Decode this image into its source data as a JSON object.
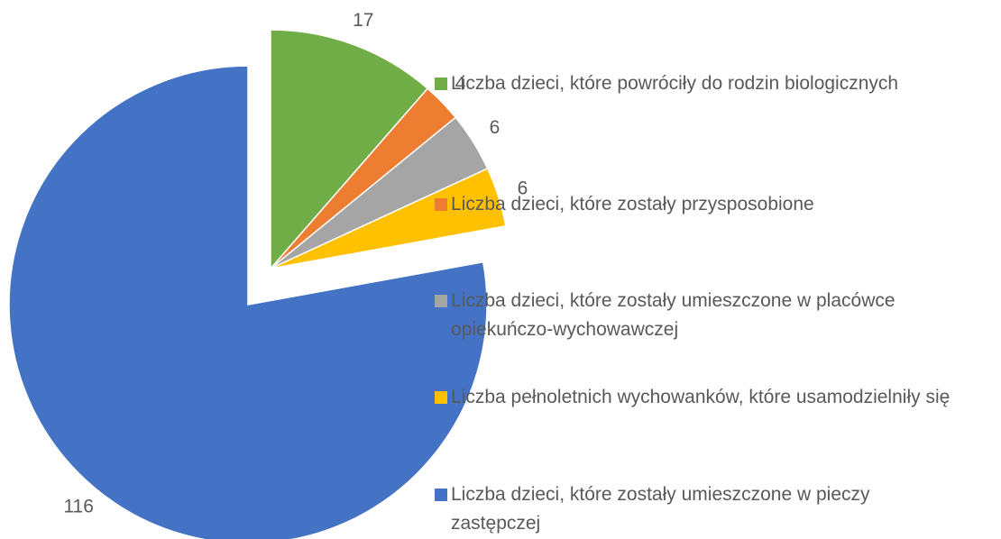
{
  "chart_data": {
    "type": "pie",
    "categories": [
      "Liczba dzieci, które powróciły do rodzin biologicznych",
      "Liczba dzieci, które zostały przysposobione",
      "Liczba dzieci, które zostały umieszczone w placówce opiekuńczo-wychowawczej",
      "Liczba pełnoletnich wychowanków, które usamodzielniły się",
      "Liczba dzieci, które zostały umieszczone w pieczy zastępczej"
    ],
    "values": [
      17,
      4,
      6,
      6,
      116
    ],
    "colors": [
      "#70ad47",
      "#ed7d31",
      "#a5a5a5",
      "#ffc000",
      "#4472c4"
    ],
    "exploded": [
      true,
      true,
      true,
      true,
      false
    ],
    "legend": "right"
  }
}
